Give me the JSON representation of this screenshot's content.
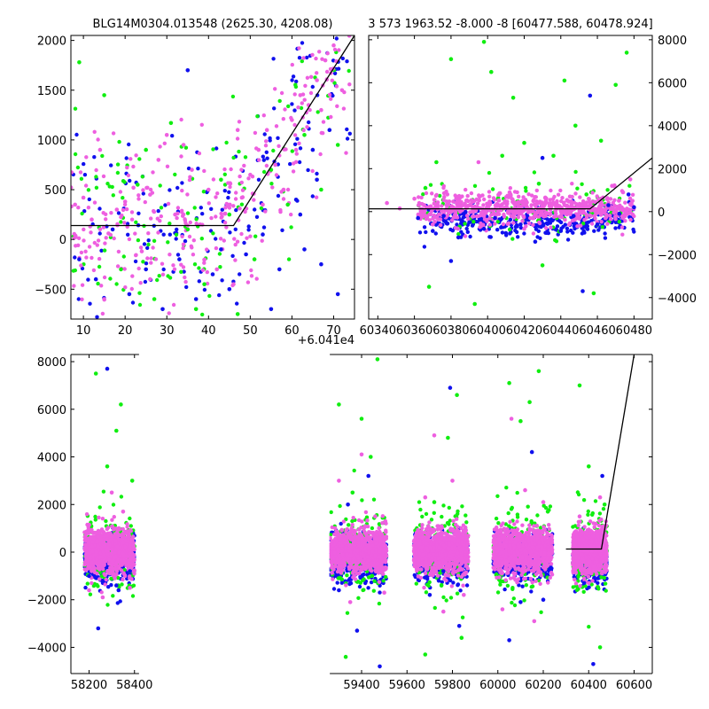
{
  "chart_data": [
    {
      "type": "scatter",
      "title": "BLG14M0304.013548 (2625.30, 4208.08)",
      "xlim": [
        7,
        75
      ],
      "ylim": [
        -800,
        2050
      ],
      "xticks": [
        10,
        20,
        30,
        40,
        50,
        60,
        70
      ],
      "xtick_labels": [
        "10",
        "20",
        "30",
        "40",
        "50",
        "60",
        "70"
      ],
      "yticks": [
        -500,
        0,
        500,
        1000,
        1500,
        2000
      ],
      "ytick_labels": [
        "−500",
        "0",
        "500",
        "1000",
        "1500",
        "2000"
      ],
      "y_axis_side": "left",
      "offset_label": "+6.041e4",
      "series": [
        {
          "color": "#ee5fe0",
          "points": [
            [
              8,
              350
            ],
            [
              10,
              420
            ],
            [
              12,
              200
            ],
            [
              14,
              900
            ],
            [
              16,
              60
            ],
            [
              18,
              300
            ],
            [
              20,
              380
            ],
            [
              22,
              520
            ],
            [
              24,
              -120
            ],
            [
              26,
              450
            ],
            [
              28,
              800
            ],
            [
              30,
              1050
            ],
            [
              32,
              250
            ],
            [
              34,
              -50
            ],
            [
              36,
              700
            ],
            [
              38,
              150
            ],
            [
              40,
              500
            ],
            [
              42,
              -300
            ],
            [
              44,
              260
            ],
            [
              46,
              -450
            ],
            [
              48,
              420
            ],
            [
              50,
              650
            ],
            [
              52,
              900
            ],
            [
              54,
              1100
            ],
            [
              56,
              750
            ],
            [
              58,
              500
            ],
            [
              60,
              1200
            ],
            [
              62,
              1450
            ],
            [
              64,
              1350
            ],
            [
              66,
              1600
            ],
            [
              68,
              1800
            ],
            [
              70,
              1950
            ],
            [
              72,
              1500
            ],
            [
              26,
              -400
            ],
            [
              34,
              950
            ],
            [
              47,
              1100
            ],
            [
              53,
              350
            ],
            [
              61,
              900
            ],
            [
              67,
              1300
            ],
            [
              15,
              -600
            ]
          ]
        },
        {
          "color": "#1010ee",
          "points": [
            [
              9,
              -200
            ],
            [
              13,
              -400
            ],
            [
              17,
              100
            ],
            [
              21,
              -550
            ],
            [
              25,
              -300
            ],
            [
              29,
              -700
            ],
            [
              33,
              -200
            ],
            [
              37,
              -600
            ],
            [
              41,
              -350
            ],
            [
              45,
              -500
            ],
            [
              49,
              -150
            ],
            [
              53,
              50
            ],
            [
              57,
              -300
            ],
            [
              61,
              400
            ],
            [
              63,
              -100
            ],
            [
              65,
              900
            ],
            [
              67,
              -250
            ],
            [
              69,
              1100
            ],
            [
              71,
              -550
            ],
            [
              55,
              -700
            ],
            [
              43,
              -100
            ],
            [
              35,
              1700
            ],
            [
              62,
              250
            ],
            [
              66,
              600
            ]
          ]
        },
        {
          "color": "#10ee10",
          "points": [
            [
              9,
              1780
            ],
            [
              15,
              1450
            ],
            [
              19,
              -300
            ],
            [
              23,
              550
            ],
            [
              27,
              -600
            ],
            [
              31,
              1170
            ],
            [
              35,
              100
            ],
            [
              39,
              -450
            ],
            [
              43,
              600
            ],
            [
              47,
              -750
            ],
            [
              51,
              -200
            ],
            [
              55,
              700
            ],
            [
              59,
              350
            ],
            [
              63,
              1050
            ],
            [
              67,
              500
            ],
            [
              71,
              950
            ],
            [
              37,
              -700
            ],
            [
              45,
              250
            ],
            [
              25,
              900
            ]
          ]
        }
      ],
      "lines": [
        {
          "color": "#000000",
          "points": [
            [
              7,
              140
            ],
            [
              46,
              140
            ],
            [
              75,
              2050
            ]
          ]
        }
      ]
    },
    {
      "type": "scatter",
      "title": "3 573 1963.52 -8.000 -8 [60477.588, 60478.924]",
      "xlim": [
        60335,
        60490
      ],
      "ylim": [
        -5000,
        8200
      ],
      "xticks": [
        60340,
        60360,
        60380,
        60400,
        60420,
        60440,
        60460,
        60480
      ],
      "xtick_labels": [
        "60340",
        "60360",
        "60380",
        "60400",
        "60420",
        "60440",
        "60460",
        "60480"
      ],
      "yticks": [
        -4000,
        -2000,
        0,
        2000,
        4000,
        6000,
        8000
      ],
      "ytick_labels": [
        "−4000",
        "−2000",
        "0",
        "2000",
        "4000",
        "6000",
        "8000"
      ],
      "y_axis_side": "right",
      "series": [
        {
          "color": "#ee5fe0",
          "points": [
            [
              60345,
              400
            ],
            [
              60352,
              150
            ],
            [
              60360,
              600
            ],
            [
              60365,
              -100
            ],
            [
              60372,
              300
            ],
            [
              60378,
              800
            ],
            [
              60385,
              0
            ],
            [
              60392,
              500
            ],
            [
              60398,
              -200
            ],
            [
              60405,
              350
            ],
            [
              60412,
              900
            ],
            [
              60418,
              100
            ],
            [
              60425,
              -300
            ],
            [
              60432,
              450
            ],
            [
              60438,
              200
            ],
            [
              60445,
              700
            ],
            [
              60450,
              -100
            ],
            [
              60456,
              300
            ],
            [
              60462,
              600
            ],
            [
              60468,
              1200
            ],
            [
              60474,
              900
            ],
            [
              60478,
              1500
            ],
            [
              60395,
              2300
            ],
            [
              60420,
              -800
            ],
            [
              60370,
              -600
            ]
          ]
        },
        {
          "color": "#1010ee",
          "points": [
            [
              60362,
              -300
            ],
            [
              60370,
              -900
            ],
            [
              60376,
              -200
            ],
            [
              60384,
              -1200
            ],
            [
              60390,
              -500
            ],
            [
              60398,
              -800
            ],
            [
              60404,
              -300
            ],
            [
              60410,
              -1000
            ],
            [
              60418,
              -600
            ],
            [
              60426,
              -1400
            ],
            [
              60434,
              -400
            ],
            [
              60440,
              -900
            ],
            [
              60447,
              -200
            ],
            [
              60452,
              -3700
            ],
            [
              60456,
              5400
            ],
            [
              60460,
              -600
            ],
            [
              60466,
              300
            ],
            [
              60472,
              -100
            ],
            [
              60477,
              800
            ],
            [
              60480,
              200
            ],
            [
              60380,
              -2300
            ],
            [
              60430,
              2500
            ]
          ]
        },
        {
          "color": "#10ee10",
          "points": [
            [
              60366,
              1100
            ],
            [
              60372,
              2300
            ],
            [
              60380,
              7100
            ],
            [
              60393,
              -4300
            ],
            [
              60398,
              7900
            ],
            [
              60402,
              6500
            ],
            [
              60408,
              2600
            ],
            [
              60414,
              5300
            ],
            [
              60420,
              3200
            ],
            [
              60428,
              1300
            ],
            [
              60436,
              2600
            ],
            [
              60442,
              6100
            ],
            [
              60448,
              4000
            ],
            [
              60454,
              800
            ],
            [
              60462,
              3300
            ],
            [
              60470,
              5900
            ],
            [
              60476,
              7400
            ],
            [
              60368,
              -3500
            ],
            [
              60430,
              -2500
            ],
            [
              60458,
              -3800
            ]
          ]
        }
      ],
      "lines": [
        {
          "color": "#000000",
          "points": [
            [
              60335,
              130
            ],
            [
              60456,
              130
            ],
            [
              60490,
              2500
            ]
          ]
        }
      ]
    },
    {
      "type": "scatter",
      "title": "",
      "xlim": [
        58120,
        60680
      ],
      "ylim": [
        -5100,
        8300
      ],
      "xticks": [
        58200,
        58400,
        59400,
        59600,
        59800,
        60000,
        60200,
        60400,
        60600
      ],
      "xtick_labels": [
        "58200",
        "58400",
        "59400",
        "59600",
        "59800",
        "60000",
        "60200",
        "60400",
        "60600"
      ],
      "yticks": [
        -4000,
        -2000,
        0,
        2000,
        4000,
        6000,
        8000
      ],
      "ytick_labels": [
        "−4000",
        "−2000",
        "0",
        "2000",
        "4000",
        "6000",
        "8000"
      ],
      "y_axis_side": "left",
      "axis_break": [
        58420,
        59260
      ],
      "seasons": [
        [
          58180,
          58400
        ],
        [
          59260,
          59510
        ],
        [
          59630,
          59870
        ],
        [
          59980,
          60240
        ],
        [
          60330,
          60480
        ]
      ],
      "series": [
        {
          "color": "#ee5fe0",
          "points": [
            [
              58200,
              -1600
            ],
            [
              58260,
              -1900
            ],
            [
              58300,
              2500
            ],
            [
              58350,
              1700
            ],
            [
              58380,
              -1500
            ],
            [
              59300,
              3000
            ],
            [
              59350,
              -2100
            ],
            [
              59400,
              4100
            ],
            [
              59460,
              1500
            ],
            [
              59500,
              -1700
            ],
            [
              59680,
              2300
            ],
            [
              59720,
              4900
            ],
            [
              59760,
              -2500
            ],
            [
              59800,
              3000
            ],
            [
              59850,
              -1800
            ],
            [
              60020,
              -2400
            ],
            [
              60060,
              5600
            ],
            [
              60120,
              2600
            ],
            [
              60160,
              -2900
            ],
            [
              60200,
              2100
            ],
            [
              60360,
              1500
            ],
            [
              60400,
              -1300
            ],
            [
              60450,
              2300
            ]
          ]
        },
        {
          "color": "#1010ee",
          "points": [
            [
              58200,
              -1000
            ],
            [
              58240,
              -3200
            ],
            [
              58280,
              7700
            ],
            [
              58320,
              -1400
            ],
            [
              58380,
              -800
            ],
            [
              59300,
              -1600
            ],
            [
              59340,
              2000
            ],
            [
              59380,
              -3300
            ],
            [
              59430,
              3200
            ],
            [
              59480,
              -4800
            ],
            [
              59700,
              -1800
            ],
            [
              59740,
              -1200
            ],
            [
              59790,
              6900
            ],
            [
              59830,
              -3100
            ],
            [
              60050,
              -3700
            ],
            [
              60100,
              -2100
            ],
            [
              60150,
              4200
            ],
            [
              60200,
              -2000
            ],
            [
              60380,
              -1300
            ],
            [
              60420,
              -4700
            ],
            [
              60460,
              3200
            ],
            [
              59760,
              -800
            ],
            [
              58330,
              -1600
            ]
          ]
        },
        {
          "color": "#10ee10",
          "points": [
            [
              58230,
              7500
            ],
            [
              58280,
              3600
            ],
            [
              58320,
              5100
            ],
            [
              58340,
              6200
            ],
            [
              58390,
              3000
            ],
            [
              59300,
              6200
            ],
            [
              59360,
              2500
            ],
            [
              59400,
              5600
            ],
            [
              59440,
              4000
            ],
            [
              59470,
              8100
            ],
            [
              59330,
              -4400
            ],
            [
              59680,
              -4300
            ],
            [
              59720,
              2100
            ],
            [
              59780,
              4800
            ],
            [
              59820,
              6600
            ],
            [
              60050,
              7100
            ],
            [
              60100,
              5500
            ],
            [
              60140,
              6300
            ],
            [
              60180,
              7600
            ],
            [
              60220,
              1700
            ],
            [
              60360,
              7000
            ],
            [
              60400,
              3600
            ],
            [
              60450,
              -4000
            ],
            [
              60470,
              2000
            ],
            [
              59840,
              -3600
            ]
          ]
        }
      ],
      "lines": [
        {
          "color": "#000000",
          "points": [
            [
              60300,
              130
            ],
            [
              60456,
              130
            ],
            [
              60600,
              8300
            ]
          ]
        }
      ]
    }
  ]
}
